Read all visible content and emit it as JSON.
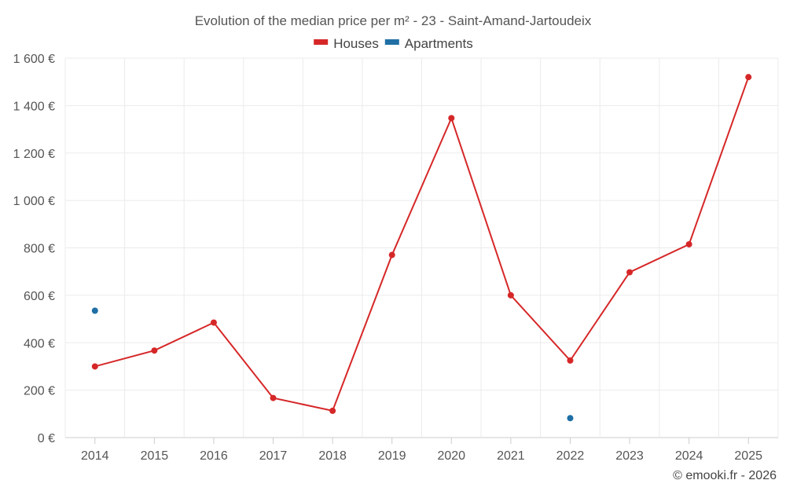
{
  "chart_data": {
    "type": "line",
    "title": "Evolution of the median price per m² - 23 - Saint-Amand-Jartoudeix",
    "categories": [
      "2014",
      "2015",
      "2016",
      "2017",
      "2018",
      "2019",
      "2020",
      "2021",
      "2022",
      "2023",
      "2024",
      "2025"
    ],
    "ylim": [
      0,
      1600
    ],
    "yticks": [
      0,
      200,
      400,
      600,
      800,
      1000,
      1200,
      1400,
      1600
    ],
    "ytick_labels": [
      "0 €",
      "200 €",
      "400 €",
      "600 €",
      "800 €",
      "1 000 €",
      "1 200 €",
      "1 400 €",
      "1 600 €"
    ],
    "grid": true,
    "legend_position": "top-center",
    "series": [
      {
        "name": "Houses",
        "color": "#d62728",
        "line": true,
        "values": [
          300,
          367,
          485,
          167,
          113,
          770,
          1347,
          600,
          325,
          697,
          815,
          1520
        ]
      },
      {
        "name": "Apartments",
        "color": "#1f6fa5",
        "line": false,
        "values": [
          535,
          null,
          null,
          null,
          null,
          null,
          null,
          null,
          82,
          null,
          null,
          null
        ]
      }
    ]
  },
  "credit": "© emooki.fr - 2026"
}
